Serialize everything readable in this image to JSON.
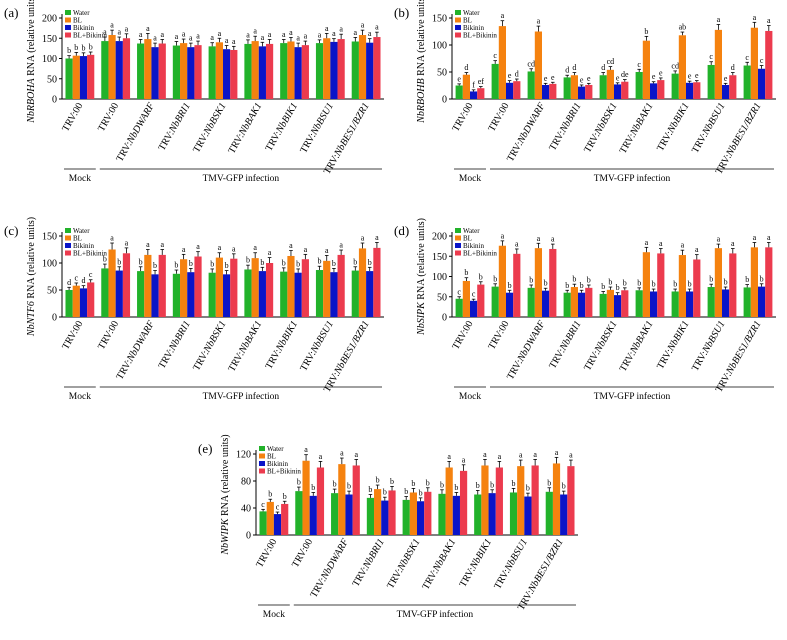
{
  "figure": {
    "group_labels": [
      "Mock",
      "TMV-GFP infection"
    ],
    "colors": {
      "Water": "#22b22a",
      "BL": "#f5820f",
      "Bikinin": "#0a14c8",
      "BL+Bikinin": "#ec3b4e"
    }
  },
  "chart_data": [
    {
      "type": "bar",
      "panel_label": "(a)",
      "ylabel": "NbRBOHA RNA (relative units)",
      "ylim": [
        0,
        200
      ],
      "yticks": [
        0,
        50,
        100,
        150,
        200
      ],
      "legend": [
        "Water",
        "BL",
        "Bikinin",
        "BL+Bikinin"
      ],
      "legend_position": "top-left",
      "categories": [
        "TRV:00",
        "TRV:00",
        "TRV:NbDWARF",
        "TRV:NbBRI1",
        "TRV:NbBSK1",
        "TRV:NbBAK1",
        "TRV:NbBIK1",
        "TRV:NbBSU1",
        "TRV:NbBES1/BZR1"
      ],
      "series": [
        {
          "name": "Water",
          "values": [
            100,
            143,
            137,
            132,
            130,
            136,
            138,
            138,
            142
          ],
          "errors": [
            7,
            10,
            10,
            10,
            9,
            10,
            9,
            8,
            10
          ]
        },
        {
          "name": "BL",
          "values": [
            107,
            158,
            148,
            138,
            140,
            143,
            142,
            150,
            158
          ],
          "errors": [
            8,
            12,
            14,
            10,
            10,
            12,
            10,
            12,
            12
          ]
        },
        {
          "name": "Bikinin",
          "values": [
            106,
            143,
            128,
            128,
            123,
            130,
            128,
            141,
            139
          ],
          "errors": [
            8,
            10,
            10,
            10,
            9,
            10,
            10,
            8,
            10
          ]
        },
        {
          "name": "BL+Bikinin",
          "values": [
            109,
            150,
            137,
            133,
            121,
            136,
            133,
            148,
            153
          ],
          "errors": [
            7,
            11,
            10,
            10,
            9,
            11,
            10,
            12,
            12
          ]
        }
      ],
      "letters": [
        [
          "b",
          "b",
          "b",
          "b"
        ],
        [
          "a",
          "a",
          "a",
          "a"
        ],
        [
          "a",
          "a",
          "a",
          "a"
        ],
        [
          "a",
          "a",
          "a",
          "a"
        ],
        [
          "a",
          "a",
          "a",
          "a"
        ],
        [
          "a",
          "a",
          "a",
          "a"
        ],
        [
          "a",
          "a",
          "a",
          "a"
        ],
        [
          "a",
          "a",
          "a",
          "a"
        ],
        [
          "a",
          "a",
          "a",
          "a"
        ]
      ]
    },
    {
      "type": "bar",
      "panel_label": "(b)",
      "ylabel": "NbRBOHB RNA (relative units)",
      "ylim": [
        0,
        150
      ],
      "yticks": [
        0,
        50,
        100,
        150
      ],
      "legend": [
        "Water",
        "BL",
        "Bikinin",
        "BL+Bikinin"
      ],
      "legend_position": "top-left",
      "categories": [
        "TRV:00",
        "TRV:00",
        "TRV:NbDWARF",
        "TRV:NbBRI1",
        "TRV:NbBSK1",
        "TRV:NbBAK1",
        "TRV:NbBIK1",
        "TRV:NbBSU1",
        "TRV:NbBES1/BZR1"
      ],
      "series": [
        {
          "name": "Water",
          "values": [
            25,
            65,
            51,
            40,
            44,
            50,
            47,
            63,
            62
          ],
          "errors": [
            3,
            6,
            5,
            4,
            5,
            5,
            5,
            6,
            6
          ]
        },
        {
          "name": "BL",
          "values": [
            45,
            135,
            125,
            44,
            54,
            108,
            118,
            128,
            132
          ],
          "errors": [
            4,
            10,
            10,
            5,
            6,
            8,
            6,
            10,
            10
          ]
        },
        {
          "name": "Bikinin",
          "values": [
            14,
            30,
            26,
            23,
            27,
            29,
            30,
            26,
            56
          ],
          "errors": [
            3,
            4,
            3,
            3,
            3,
            3,
            3,
            3,
            6
          ]
        },
        {
          "name": "BL+Bikinin",
          "values": [
            20,
            33,
            28,
            26,
            32,
            35,
            31,
            44,
            126
          ],
          "errors": [
            3,
            4,
            3,
            3,
            4,
            4,
            3,
            5,
            10
          ]
        }
      ],
      "letters": [
        [
          "e",
          "d",
          "f",
          "ef"
        ],
        [
          "c",
          "a",
          "e",
          "d"
        ],
        [
          "cd",
          "a",
          "e",
          "e"
        ],
        [
          "d",
          "d",
          "e",
          "e"
        ],
        [
          "d",
          "cd",
          "e",
          "de"
        ],
        [
          "c",
          "b",
          "e",
          "e"
        ],
        [
          "cd",
          "ab",
          "e",
          "e"
        ],
        [
          "c",
          "a",
          "e",
          "d"
        ],
        [
          "c",
          "a",
          "c",
          "a"
        ]
      ]
    },
    {
      "type": "bar",
      "panel_label": "(c)",
      "ylabel": "NbNTF6 RNA (relative units)",
      "ylim": [
        0,
        150
      ],
      "yticks": [
        0,
        50,
        100,
        150
      ],
      "legend": [
        "Water",
        "BL",
        "Bikinin",
        "BL+Bikinin"
      ],
      "legend_position": "top-left",
      "categories": [
        "TRV:00",
        "TRV:00",
        "TRV:NbDWARF",
        "TRV:NbBRI1",
        "TRV:NbBSK1",
        "TRV:NbBAK1",
        "TRV:NbBIK1",
        "TRV:NbBSU1",
        "TRV:NbBES1/BZR1"
      ],
      "series": [
        {
          "name": "Water",
          "values": [
            50,
            90,
            85,
            80,
            82,
            88,
            84,
            87,
            86
          ],
          "errors": [
            5,
            8,
            8,
            7,
            7,
            8,
            7,
            7,
            7
          ]
        },
        {
          "name": "BL",
          "values": [
            58,
            125,
            115,
            107,
            110,
            109,
            113,
            104,
            127
          ],
          "errors": [
            5,
            12,
            10,
            9,
            9,
            10,
            10,
            10,
            10
          ]
        },
        {
          "name": "Bikinin",
          "values": [
            53,
            86,
            79,
            83,
            79,
            85,
            82,
            83,
            85
          ],
          "errors": [
            5,
            7,
            7,
            7,
            7,
            7,
            7,
            7,
            7
          ]
        },
        {
          "name": "BL+Bikinin",
          "values": [
            64,
            118,
            115,
            112,
            108,
            100,
            107,
            115,
            128
          ],
          "errors": [
            5,
            10,
            10,
            9,
            9,
            10,
            9,
            9,
            10
          ]
        }
      ],
      "letters": [
        [
          "d",
          "c",
          "d",
          "c"
        ],
        [
          "b",
          "a",
          "b",
          "a"
        ],
        [
          "b",
          "a",
          "b",
          "a"
        ],
        [
          "b",
          "a",
          "b",
          "a"
        ],
        [
          "b",
          "a",
          "b",
          "a"
        ],
        [
          "b",
          "a",
          "b",
          "a"
        ],
        [
          "b",
          "a",
          "b",
          "a"
        ],
        [
          "b",
          "a",
          "b",
          "a"
        ],
        [
          "b",
          "a",
          "b",
          "a"
        ]
      ]
    },
    {
      "type": "bar",
      "panel_label": "(d)",
      "ylabel": "NbSIPK RNA (relative units)",
      "ylim": [
        0,
        200
      ],
      "yticks": [
        0,
        50,
        100,
        150,
        200
      ],
      "legend": [
        "Water",
        "BL",
        "Bikinin",
        "BL+Bikinin"
      ],
      "legend_position": "top-left",
      "categories": [
        "TRV:00",
        "TRV:00",
        "TRV:NbDWARF",
        "TRV:NbBRI1",
        "TRV:NbBSK1",
        "TRV:NbBAK1",
        "TRV:NbBIK1",
        "TRV:NbBSU1",
        "TRV:NbBES1/BZR1"
      ],
      "series": [
        {
          "name": "Water",
          "values": [
            45,
            75,
            72,
            60,
            57,
            66,
            63,
            74,
            73
          ],
          "errors": [
            5,
            7,
            7,
            6,
            6,
            6,
            6,
            7,
            7
          ]
        },
        {
          "name": "BL",
          "values": [
            89,
            176,
            170,
            74,
            67,
            160,
            153,
            170,
            172
          ],
          "errors": [
            8,
            12,
            12,
            7,
            7,
            12,
            12,
            10,
            12
          ]
        },
        {
          "name": "Bikinin",
          "values": [
            40,
            60,
            65,
            60,
            54,
            63,
            63,
            68,
            75
          ],
          "errors": [
            4,
            6,
            6,
            6,
            6,
            6,
            6,
            6,
            7
          ]
        },
        {
          "name": "BL+Bikinin",
          "values": [
            80,
            156,
            168,
            72,
            66,
            157,
            142,
            157,
            172
          ],
          "errors": [
            7,
            12,
            12,
            7,
            6,
            12,
            12,
            12,
            12
          ]
        }
      ],
      "letters": [
        [
          "c",
          "b",
          "c",
          "b"
        ],
        [
          "b",
          "a",
          "b",
          "a"
        ],
        [
          "b",
          "a",
          "b",
          "a"
        ],
        [
          "b",
          "b",
          "b",
          "b"
        ],
        [
          "b",
          "b",
          "b",
          "b"
        ],
        [
          "b",
          "a",
          "b",
          "a"
        ],
        [
          "b",
          "a",
          "b",
          "a"
        ],
        [
          "b",
          "a",
          "b",
          "a"
        ],
        [
          "b",
          "a",
          "b",
          "a"
        ]
      ]
    },
    {
      "type": "bar",
      "panel_label": "(e)",
      "ylabel": "NbWIPK RNA (relative units)",
      "ylim": [
        0,
        120
      ],
      "yticks": [
        0,
        40,
        80,
        120
      ],
      "legend": [
        "Water",
        "BL",
        "Bikinin",
        "BL+Bikinin"
      ],
      "legend_position": "top-left",
      "categories": [
        "TRV:00",
        "TRV:00",
        "TRV:NbDWARF",
        "TRV:NbBRI1",
        "TRV:NbBSK1",
        "TRV:NbBAK1",
        "TRV:NbBIK1",
        "TRV:NbBSU1",
        "TRV:NbBES1/BZR1"
      ],
      "series": [
        {
          "name": "Water",
          "values": [
            35,
            65,
            62,
            55,
            52,
            61,
            60,
            63,
            64
          ],
          "errors": [
            3,
            6,
            6,
            5,
            5,
            6,
            6,
            6,
            6
          ]
        },
        {
          "name": "BL",
          "values": [
            49,
            110,
            105,
            68,
            63,
            100,
            103,
            102,
            106
          ],
          "errors": [
            4,
            9,
            9,
            6,
            6,
            9,
            9,
            9,
            9
          ]
        },
        {
          "name": "Bikinin",
          "values": [
            31,
            58,
            60,
            51,
            50,
            58,
            62,
            57,
            60
          ],
          "errors": [
            3,
            5,
            5,
            5,
            5,
            5,
            5,
            5,
            5
          ]
        },
        {
          "name": "BL+Bikinin",
          "values": [
            46,
            100,
            103,
            66,
            64,
            95,
            100,
            103,
            102
          ],
          "errors": [
            4,
            9,
            9,
            6,
            6,
            9,
            9,
            9,
            9
          ]
        }
      ],
      "letters": [
        [
          "c",
          "b",
          "c",
          "b"
        ],
        [
          "b",
          "a",
          "b",
          "a"
        ],
        [
          "b",
          "a",
          "b",
          "a"
        ],
        [
          "b",
          "b",
          "b",
          "b"
        ],
        [
          "b",
          "b",
          "b",
          "b"
        ],
        [
          "b",
          "a",
          "b",
          "a"
        ],
        [
          "b",
          "a",
          "b",
          "a"
        ],
        [
          "b",
          "a",
          "b",
          "a"
        ],
        [
          "b",
          "a",
          "b",
          "a"
        ]
      ]
    }
  ]
}
